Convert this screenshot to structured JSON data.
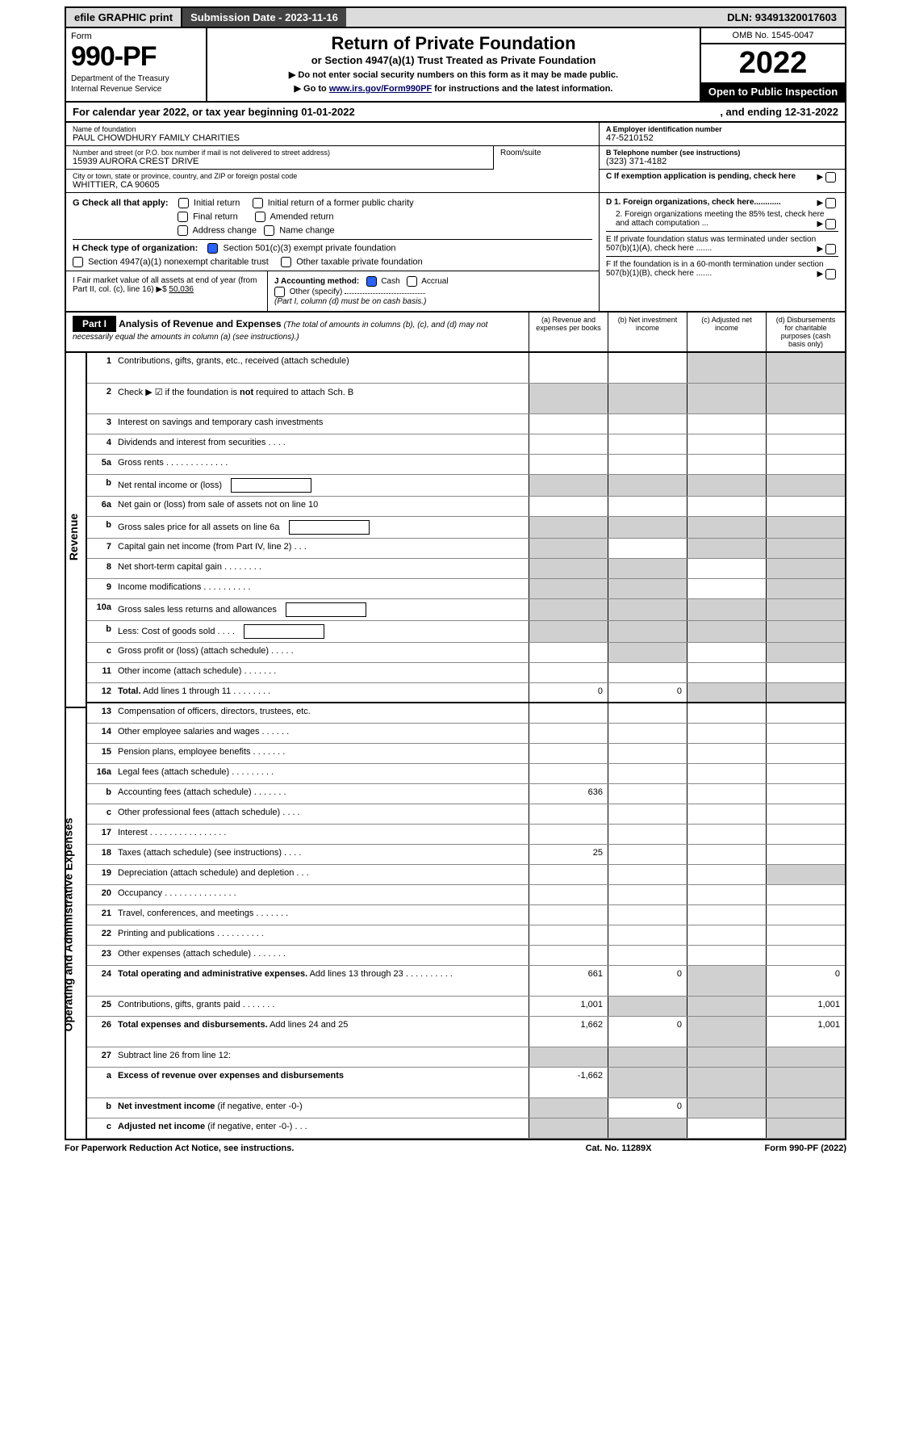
{
  "topbar": {
    "efile": "efile GRAPHIC print",
    "subdate_label": "Submission Date - 2023-11-16",
    "dln": "DLN: 93491320017603"
  },
  "header": {
    "form_label": "Form",
    "form_number": "990-PF",
    "dept1": "Department of the Treasury",
    "dept2": "Internal Revenue Service",
    "title": "Return of Private Foundation",
    "subtitle": "or Section 4947(a)(1) Trust Treated as Private Foundation",
    "note1": "▶ Do not enter social security numbers on this form as it may be made public.",
    "note2_prefix": "▶ Go to ",
    "note2_link": "www.irs.gov/Form990PF",
    "note2_suffix": " for instructions and the latest information.",
    "omb": "OMB No. 1545-0047",
    "year": "2022",
    "inspection": "Open to Public Inspection"
  },
  "calendar": {
    "start": "For calendar year 2022, or tax year beginning 01-01-2022",
    "end": ", and ending 12-31-2022"
  },
  "foundation": {
    "name_label": "Name of foundation",
    "name": "PAUL CHOWDHURY FAMILY CHARITIES",
    "addr_label": "Number and street (or P.O. box number if mail is not delivered to street address)",
    "addr": "15939 AURORA CREST DRIVE",
    "room_label": "Room/suite",
    "city_label": "City or town, state or province, country, and ZIP or foreign postal code",
    "city": "WHITTIER, CA  90605",
    "ein_label": "A Employer identification number",
    "ein": "47-5210152",
    "phone_label": "B Telephone number (see instructions)",
    "phone": "(323) 371-4182",
    "c_label": "C If exemption application is pending, check here"
  },
  "checks": {
    "g_label": "G Check all that apply:",
    "g1": "Initial return",
    "g2": "Initial return of a former public charity",
    "g3": "Final return",
    "g4": "Amended return",
    "g5": "Address change",
    "g6": "Name change",
    "h_label": "H Check type of organization:",
    "h1": "Section 501(c)(3) exempt private foundation",
    "h2": "Section 4947(a)(1) nonexempt charitable trust",
    "h3": "Other taxable private foundation",
    "i_label": "I Fair market value of all assets at end of year (from Part II, col. (c), line 16)",
    "i_value": "50,036",
    "j_label": "J Accounting method:",
    "j1": "Cash",
    "j2": "Accrual",
    "j3": "Other (specify)",
    "j_note": "(Part I, column (d) must be on cash basis.)",
    "d1": "D 1. Foreign organizations, check here............",
    "d2": "2. Foreign organizations meeting the 85% test, check here and attach computation ...",
    "e": "E  If private foundation status was terminated under section 507(b)(1)(A), check here .......",
    "f": "F  If the foundation is in a 60-month termination under section 507(b)(1)(B), check here ......."
  },
  "part1": {
    "label": "Part I",
    "title": "Analysis of Revenue and Expenses",
    "note": "(The total of amounts in columns (b), (c), and (d) may not necessarily equal the amounts in column (a) (see instructions).)",
    "col_a": "(a)   Revenue and expenses per books",
    "col_b": "(b)   Net investment income",
    "col_c": "(c)   Adjusted net income",
    "col_d": "(d)  Disbursements for charitable purposes (cash basis only)"
  },
  "sections": {
    "revenue": "Revenue",
    "expenses": "Operating and Administrative Expenses"
  },
  "rows": {
    "r1": {
      "n": "1",
      "d": "Contributions, gifts, grants, etc., received (attach schedule)"
    },
    "r2": {
      "n": "2",
      "d": "Check ▶ ☑ if the foundation is <b>not</b> required to attach Sch. B"
    },
    "r3": {
      "n": "3",
      "d": "Interest on savings and temporary cash investments"
    },
    "r4": {
      "n": "4",
      "d": "Dividends and interest from securities   .   .   .   ."
    },
    "r5a": {
      "n": "5a",
      "d": "Gross rents   .   .   .   .   .   .   .   .   .   .   .   .   ."
    },
    "r5b": {
      "n": "b",
      "d": "Net rental income or (loss)"
    },
    "r6a": {
      "n": "6a",
      "d": "Net gain or (loss) from sale of assets not on line 10"
    },
    "r6b": {
      "n": "b",
      "d": "Gross sales price for all assets on line 6a"
    },
    "r7": {
      "n": "7",
      "d": "Capital gain net income (from Part IV, line 2)   .   .   ."
    },
    "r8": {
      "n": "8",
      "d": "Net short-term capital gain  .   .   .   .   .   .   .   ."
    },
    "r9": {
      "n": "9",
      "d": "Income modifications .   .   .   .   .   .   .   .   .   ."
    },
    "r10a": {
      "n": "10a",
      "d": "Gross sales less returns and allowances"
    },
    "r10b": {
      "n": "b",
      "d": "Less: Cost of goods sold   .   .   .   ."
    },
    "r10c": {
      "n": "c",
      "d": "Gross profit or (loss) (attach schedule)   .   .   .   .   ."
    },
    "r11": {
      "n": "11",
      "d": "Other income (attach schedule)   .   .   .   .   .   .   ."
    },
    "r12": {
      "n": "12",
      "d": "<b>Total.</b> Add lines 1 through 11  .   .   .   .   .   .   .   .",
      "a": "0",
      "b": "0"
    },
    "r13": {
      "n": "13",
      "d": "Compensation of officers, directors, trustees, etc."
    },
    "r14": {
      "n": "14",
      "d": "Other employee salaries and wages  .   .   .   .   .   ."
    },
    "r15": {
      "n": "15",
      "d": "Pension plans, employee benefits .   .   .   .   .   .   ."
    },
    "r16a": {
      "n": "16a",
      "d": "Legal fees (attach schedule) .   .   .   .   .   .   .   .   ."
    },
    "r16b": {
      "n": "b",
      "d": "Accounting fees (attach schedule) .   .   .   .   .   .   .",
      "a": "636"
    },
    "r16c": {
      "n": "c",
      "d": "Other professional fees (attach schedule)   .   .   .   ."
    },
    "r17": {
      "n": "17",
      "d": "Interest .   .   .   .   .   .   .   .   .   .   .   .   .   .   .   ."
    },
    "r18": {
      "n": "18",
      "d": "Taxes (attach schedule) (see instructions)   .   .   .   .",
      "a": "25"
    },
    "r19": {
      "n": "19",
      "d": "Depreciation (attach schedule) and depletion   .   .   ."
    },
    "r20": {
      "n": "20",
      "d": "Occupancy .   .   .   .   .   .   .   .   .   .   .   .   .   .   ."
    },
    "r21": {
      "n": "21",
      "d": "Travel, conferences, and meetings .   .   .   .   .   .   ."
    },
    "r22": {
      "n": "22",
      "d": "Printing and publications .   .   .   .   .   .   .   .   .   ."
    },
    "r23": {
      "n": "23",
      "d": "Other expenses (attach schedule) .   .   .   .   .   .   ."
    },
    "r24": {
      "n": "24",
      "d": "<b>Total operating and administrative expenses.</b> Add lines 13 through 23  .   .   .   .   .   .   .   .   .   .",
      "a": "661",
      "b": "0",
      "dd": "0"
    },
    "r25": {
      "n": "25",
      "d": "Contributions, gifts, grants paid   .   .   .   .   .   .   .",
      "a": "1,001",
      "dd": "1,001"
    },
    "r26": {
      "n": "26",
      "d": "<b>Total expenses and disbursements.</b> Add lines 24 and 25",
      "a": "1,662",
      "b": "0",
      "dd": "1,001"
    },
    "r27": {
      "n": "27",
      "d": "Subtract line 26 from line 12:"
    },
    "r27a": {
      "n": "a",
      "d": "<b>Excess of revenue over expenses and disbursements</b>",
      "a": "-1,662"
    },
    "r27b": {
      "n": "b",
      "d": "<b>Net investment income</b> (if negative, enter -0-)",
      "b": "0"
    },
    "r27c": {
      "n": "c",
      "d": "<b>Adjusted net income</b> (if negative, enter -0-)   .   .   ."
    }
  },
  "footer": {
    "left": "For Paperwork Reduction Act Notice, see instructions.",
    "center": "Cat. No. 11289X",
    "right": "Form 990-PF (2022)"
  }
}
